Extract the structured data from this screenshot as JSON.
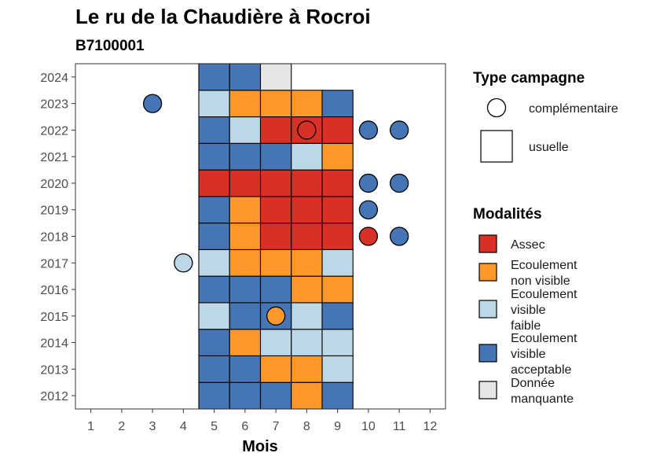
{
  "chart_data": {
    "type": "heatmap",
    "title": "Le ru de la Chaudière à Rocroi",
    "subtitle": "B7100001",
    "xlabel": "Mois",
    "ylabel": "",
    "x": [
      "1",
      "2",
      "3",
      "4",
      "5",
      "6",
      "7",
      "8",
      "9",
      "10",
      "11",
      "12"
    ],
    "y": [
      "2012",
      "2013",
      "2014",
      "2015",
      "2016",
      "2017",
      "2018",
      "2019",
      "2020",
      "2021",
      "2022",
      "2023",
      "2024"
    ],
    "xlim": [
      0.5,
      12.5
    ],
    "ylim": [
      2011.5,
      2024.5
    ],
    "grid": false,
    "colors": {
      "assec": "#D73027",
      "ecoulement_non_visible": "#FE9929",
      "ecoulement_visible_faible": "#BCD7E6",
      "ecoulement_visible_acceptable": "#4575B4",
      "donnee_manquante": "#E5E5E5"
    },
    "usuelle": [
      {
        "year": 2012,
        "months": [
          5,
          6,
          7,
          8,
          9
        ],
        "codes": [
          "A",
          "A",
          "A",
          "N",
          "A"
        ]
      },
      {
        "year": 2013,
        "months": [
          5,
          6,
          7,
          8,
          9
        ],
        "codes": [
          "A",
          "A",
          "N",
          "N",
          "F"
        ]
      },
      {
        "year": 2014,
        "months": [
          5,
          6,
          7,
          8,
          9
        ],
        "codes": [
          "A",
          "N",
          "F",
          "F",
          "F"
        ]
      },
      {
        "year": 2015,
        "months": [
          5,
          6,
          7,
          8,
          9
        ],
        "codes": [
          "F",
          "A",
          "A",
          "F",
          "A"
        ]
      },
      {
        "year": 2016,
        "months": [
          5,
          6,
          7,
          8,
          9
        ],
        "codes": [
          "A",
          "A",
          "A",
          "N",
          "N"
        ]
      },
      {
        "year": 2017,
        "months": [
          5,
          6,
          7,
          8,
          9
        ],
        "codes": [
          "F",
          "N",
          "N",
          "N",
          "F"
        ]
      },
      {
        "year": 2018,
        "months": [
          5,
          6,
          7,
          8,
          9
        ],
        "codes": [
          "A",
          "N",
          "S",
          "S",
          "S"
        ]
      },
      {
        "year": 2019,
        "months": [
          5,
          6,
          7,
          8,
          9
        ],
        "codes": [
          "A",
          "N",
          "S",
          "S",
          "S"
        ]
      },
      {
        "year": 2020,
        "months": [
          5,
          6,
          7,
          8,
          9
        ],
        "codes": [
          "S",
          "S",
          "S",
          "S",
          "S"
        ]
      },
      {
        "year": 2021,
        "months": [
          5,
          6,
          7,
          8,
          9
        ],
        "codes": [
          "A",
          "A",
          "A",
          "F",
          "N"
        ]
      },
      {
        "year": 2022,
        "months": [
          5,
          6,
          7,
          8,
          9
        ],
        "codes": [
          "A",
          "F",
          "S",
          "S",
          "S"
        ]
      },
      {
        "year": 2023,
        "months": [
          5,
          6,
          7,
          8,
          9
        ],
        "codes": [
          "F",
          "N",
          "N",
          "N",
          "A"
        ]
      },
      {
        "year": 2024,
        "months": [
          5,
          6,
          7
        ],
        "codes": [
          "A",
          "A",
          "M"
        ]
      }
    ],
    "complementaire": [
      {
        "year": 2023,
        "month": 3,
        "code": "A"
      },
      {
        "year": 2022,
        "month": 8,
        "code": "S"
      },
      {
        "year": 2022,
        "month": 10,
        "code": "A"
      },
      {
        "year": 2022,
        "month": 11,
        "code": "A"
      },
      {
        "year": 2020,
        "month": 10,
        "code": "A"
      },
      {
        "year": 2020,
        "month": 11,
        "code": "A"
      },
      {
        "year": 2019,
        "month": 10,
        "code": "A"
      },
      {
        "year": 2018,
        "month": 10,
        "code": "S"
      },
      {
        "year": 2018,
        "month": 11,
        "code": "A"
      },
      {
        "year": 2017,
        "month": 4,
        "code": "F"
      },
      {
        "year": 2015,
        "month": 7,
        "code": "N"
      }
    ],
    "legend_campagne": {
      "title": "Type campagne",
      "entries": [
        {
          "shape": "circle",
          "label": "complémentaire"
        },
        {
          "shape": "square",
          "label": "usuelle"
        }
      ]
    },
    "legend_modalites": {
      "title": "Modalités",
      "entries": [
        {
          "code": "S",
          "lines": [
            "Assec"
          ]
        },
        {
          "code": "N",
          "lines": [
            "Ecoulement",
            "non visible"
          ]
        },
        {
          "code": "F",
          "lines": [
            "Ecoulement",
            "visible",
            "faible"
          ]
        },
        {
          "code": "A",
          "lines": [
            "Ecoulement",
            "visible",
            "acceptable"
          ]
        },
        {
          "code": "M",
          "lines": [
            "Donnée",
            "manquante"
          ]
        }
      ]
    },
    "legend_position": "right"
  }
}
